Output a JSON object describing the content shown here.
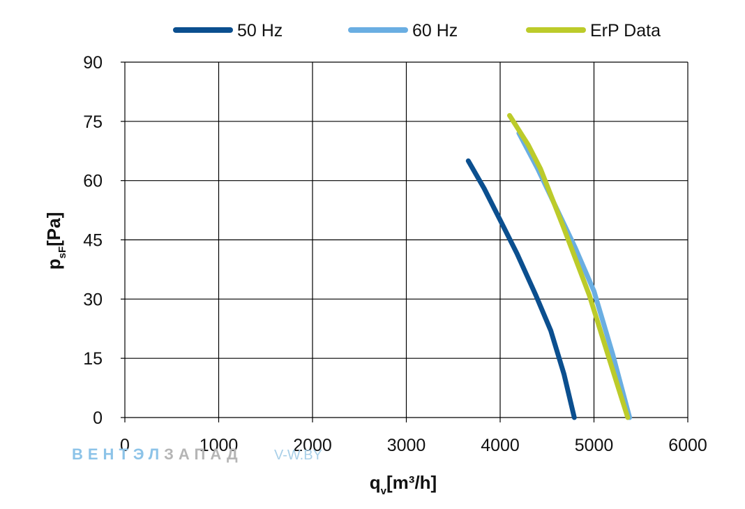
{
  "chart_data": {
    "type": "line",
    "title": "",
    "xlabel": {
      "main": "q",
      "sub": "v",
      "rest": "[m³/h]"
    },
    "ylabel": {
      "main": "p",
      "sub": "sF",
      "rest": "[Pa]"
    },
    "xlim": [
      0,
      6000
    ],
    "ylim": [
      0,
      90
    ],
    "x_ticks": [
      "0",
      "1000",
      "2000",
      "3000",
      "4000",
      "5000",
      "6000"
    ],
    "y_ticks": [
      "0",
      "15",
      "30",
      "45",
      "60",
      "75",
      "90"
    ],
    "x_tick_values": [
      0,
      1000,
      2000,
      3000,
      4000,
      5000,
      6000
    ],
    "y_tick_values": [
      0,
      15,
      30,
      45,
      60,
      75,
      90
    ],
    "grid": true,
    "legend_position": "top",
    "series": [
      {
        "name": "50 Hz",
        "color": "#0b4f8f",
        "points": [
          [
            3660,
            65
          ],
          [
            3830,
            58
          ],
          [
            4000,
            50
          ],
          [
            4180,
            41.5
          ],
          [
            4380,
            31
          ],
          [
            4540,
            22
          ],
          [
            4680,
            11
          ],
          [
            4790,
            0
          ]
        ]
      },
      {
        "name": "60 Hz",
        "color": "#6aaee2",
        "points": [
          [
            4200,
            72
          ],
          [
            4400,
            63
          ],
          [
            4600,
            53
          ],
          [
            4800,
            43
          ],
          [
            5000,
            32
          ],
          [
            5200,
            16
          ],
          [
            5380,
            0
          ]
        ]
      },
      {
        "name": "ErP Data",
        "color": "#bccb2a",
        "points": [
          [
            4100,
            76.5
          ],
          [
            4300,
            69
          ],
          [
            4430,
            63
          ],
          [
            4670,
            48.5
          ],
          [
            4950,
            31
          ],
          [
            5200,
            12
          ],
          [
            5360,
            0
          ]
        ]
      }
    ]
  },
  "watermark": {
    "brand_part1": "ВЕНТЭЛ",
    "brand_part2": "ЗАПАД",
    "url": "V-W.BY",
    "color_part1": "#8cc3e8",
    "color_part2": "#b5b5b5",
    "color_url": "#a8cfe8"
  }
}
